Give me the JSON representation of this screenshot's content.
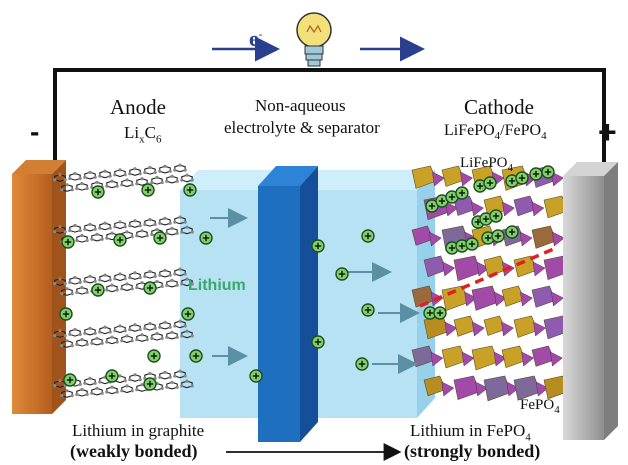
{
  "circuit": {
    "electron_label": "e",
    "electron_sup": "-",
    "negative_sign": "-",
    "positive_sign": "+"
  },
  "anode": {
    "title": "Anode",
    "formula": {
      "a": "Li",
      "b": "x",
      "c": "C",
      "d": "6"
    }
  },
  "electrolyte": {
    "line1": "Non-aqueous",
    "line2": "electrolyte & separator",
    "ion_label": "Lithium"
  },
  "cathode": {
    "title": "Cathode",
    "formula": {
      "a": "LiFePO",
      "b": "4",
      "c": "/FePO",
      "d": "4"
    },
    "lifepo_label": {
      "a": "LiFePO",
      "b": "4"
    },
    "fepo_label": {
      "a": "FePO",
      "b": "4"
    }
  },
  "bottom": {
    "left_line1": "Lithium in graphite",
    "left_line2": "(weakly bonded)",
    "right_line1_a": "Lithium in FePO",
    "right_line1_b": "4",
    "right_line2": "(strongly bonded)"
  },
  "colors": {
    "wire": "#111111",
    "arrow_blue": "#2b3f8f",
    "anode_plate": "#c8702a",
    "cathode_plate": "#b0b0b0",
    "electrolyte": "#9fd8f0",
    "separator": "#1e6fc0",
    "lithium_ion": "#7fd36a",
    "lithium_text": "#3aa86b",
    "crystal_gold": "#c9a126",
    "crystal_purple": "#a24aa8",
    "crystal_brown": "#9a6a3c",
    "dashed_line": "#e02020",
    "bulb": "#f2e07a"
  }
}
